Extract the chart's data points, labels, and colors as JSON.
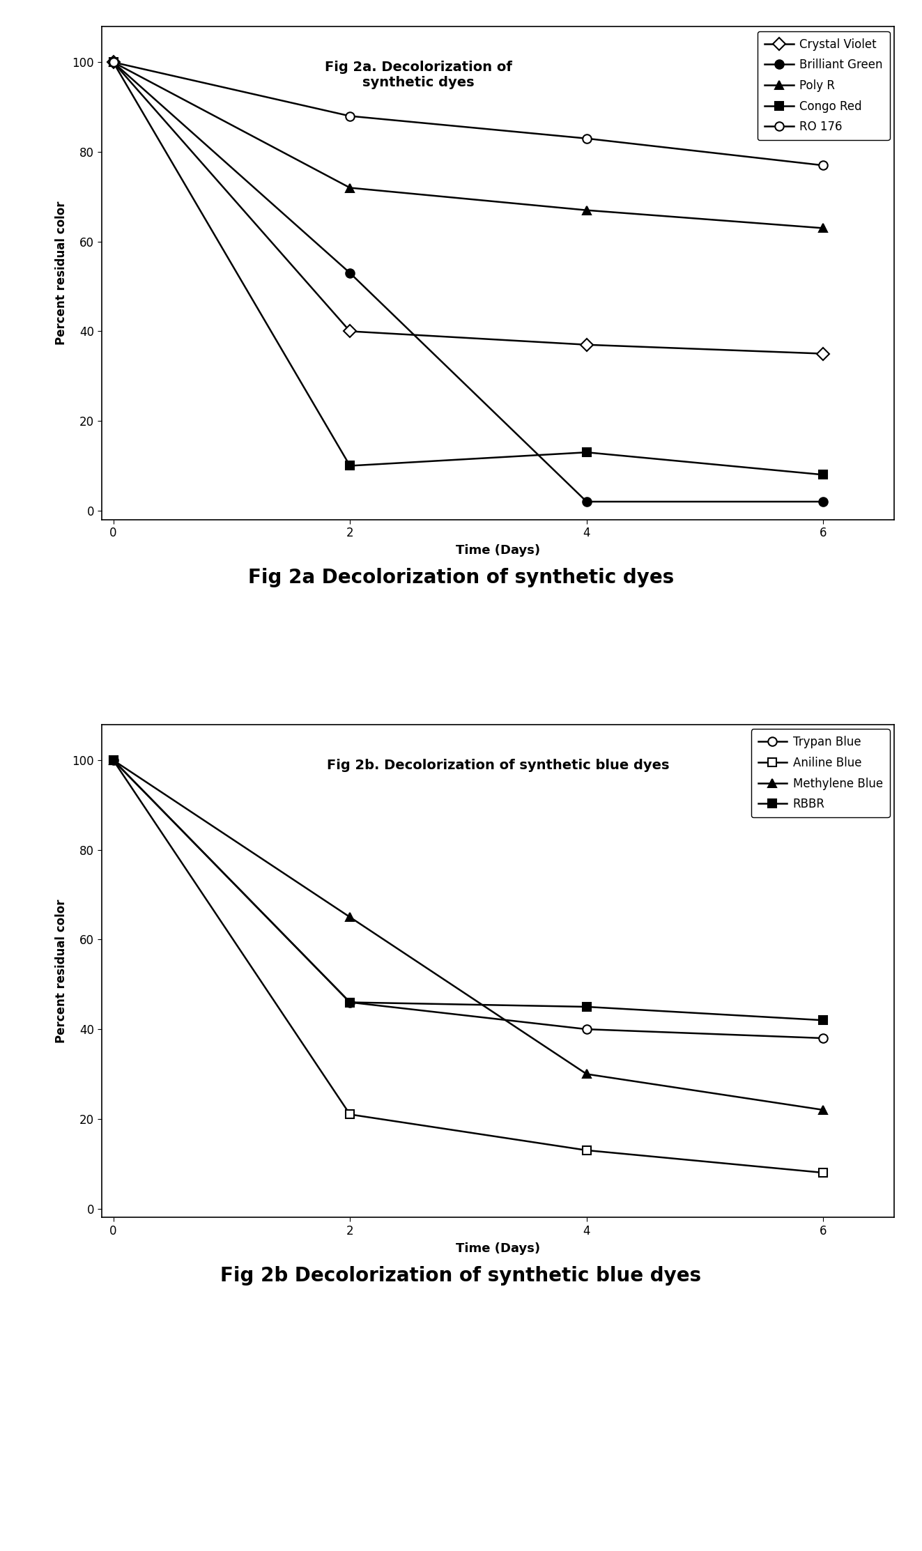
{
  "fig2a": {
    "title": "Fig 2a. Decolorization of\nsynthetic dyes",
    "xlabel": "Time (Days)",
    "ylabel": "Percent residual color",
    "xlim": [
      -0.1,
      6.6
    ],
    "ylim": [
      -2,
      108
    ],
    "yticks": [
      0,
      20,
      40,
      60,
      80,
      100
    ],
    "xticks": [
      0,
      2,
      4,
      6
    ],
    "series": [
      {
        "label": "Crystal Violet",
        "x": [
          0,
          2,
          4,
          6
        ],
        "y": [
          100,
          40,
          37,
          35
        ],
        "marker": "D",
        "filled": false,
        "linewidth": 1.8,
        "markersize": 9
      },
      {
        "label": "Brilliant Green",
        "x": [
          0,
          2,
          4,
          6
        ],
        "y": [
          100,
          53,
          2,
          2
        ],
        "marker": "o",
        "filled": true,
        "linewidth": 1.8,
        "markersize": 9
      },
      {
        "label": "Poly R",
        "x": [
          0,
          2,
          4,
          6
        ],
        "y": [
          100,
          72,
          67,
          63
        ],
        "marker": "^",
        "filled": true,
        "linewidth": 1.8,
        "markersize": 9
      },
      {
        "label": "Congo Red",
        "x": [
          0,
          2,
          4,
          6
        ],
        "y": [
          100,
          10,
          13,
          8
        ],
        "marker": "s",
        "filled": true,
        "linewidth": 1.8,
        "markersize": 9
      },
      {
        "label": "RO 176",
        "x": [
          0,
          2,
          4,
          6
        ],
        "y": [
          100,
          88,
          83,
          77
        ],
        "marker": "o",
        "filled": false,
        "linewidth": 1.8,
        "markersize": 9
      }
    ]
  },
  "fig2b": {
    "title": "Fig 2b. Decolorization of synthetic blue dyes",
    "xlabel": "Time (Days)",
    "ylabel": "Percent residual color",
    "xlim": [
      -0.1,
      6.6
    ],
    "ylim": [
      -2,
      108
    ],
    "yticks": [
      0,
      20,
      40,
      60,
      80,
      100
    ],
    "xticks": [
      0,
      2,
      4,
      6
    ],
    "series": [
      {
        "label": "Trypan Blue",
        "x": [
          0,
          2,
          4,
          6
        ],
        "y": [
          100,
          46,
          40,
          38
        ],
        "marker": "o",
        "filled": false,
        "linewidth": 1.8,
        "markersize": 9
      },
      {
        "label": "Aniline Blue",
        "x": [
          0,
          2,
          4,
          6
        ],
        "y": [
          100,
          21,
          13,
          8
        ],
        "marker": "s",
        "filled": false,
        "linewidth": 1.8,
        "markersize": 9
      },
      {
        "label": "Methylene Blue",
        "x": [
          0,
          2,
          4,
          6
        ],
        "y": [
          100,
          65,
          30,
          22
        ],
        "marker": "^",
        "filled": true,
        "linewidth": 1.8,
        "markersize": 9
      },
      {
        "label": "RBBR",
        "x": [
          0,
          2,
          4,
          6
        ],
        "y": [
          100,
          46,
          45,
          42
        ],
        "marker": "s",
        "filled": true,
        "linewidth": 1.8,
        "markersize": 9
      }
    ]
  },
  "caption2a": "Fig 2a Decolorization of synthetic dyes",
  "caption2b": "Fig 2b Decolorization of synthetic blue dyes",
  "caption_fontsize": 20,
  "title_fontsize": 14,
  "label_fontsize": 13,
  "tick_fontsize": 12,
  "legend_fontsize": 12
}
